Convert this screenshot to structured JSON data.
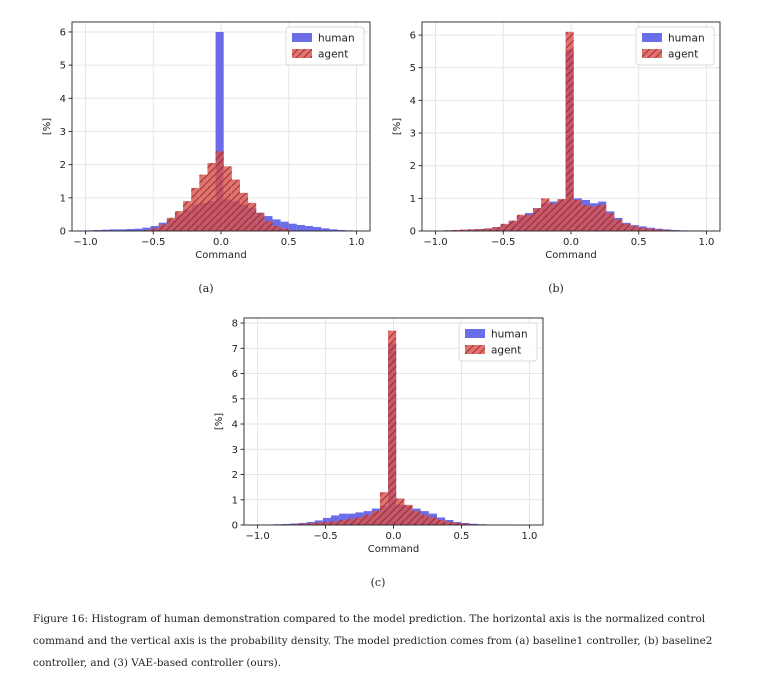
{
  "figure": {
    "caption": "Figure 16: Histogram of human demonstration compared to the model prediction. The horizontal axis is the normalized control command and the vertical axis is the probability density. The model prediction comes from (a) baseline1 controller, (b) baseline2 controller, and (3) VAE-based controller (ours).",
    "colors": {
      "human": "#5b5ce6",
      "agent": "#d9534f",
      "agent_hatch": "#8a1f1f",
      "grid": "#e6e6e6"
    }
  },
  "chart_data": [
    {
      "type": "bar",
      "panel_label": "(a)",
      "xlabel": "Command",
      "ylabel": "[%]",
      "xlim": [
        -1.1,
        1.1
      ],
      "ylim": [
        0,
        6.3
      ],
      "xticks": [
        "−1.0",
        "−0.5",
        "0.0",
        "0.5",
        "1.0"
      ],
      "xtick_values": [
        -1.0,
        -0.5,
        0.0,
        0.5,
        1.0
      ],
      "yticks": [
        "0",
        "1",
        "2",
        "3",
        "4",
        "5",
        "6"
      ],
      "ytick_values": [
        0,
        1,
        2,
        3,
        4,
        5,
        6
      ],
      "grid": true,
      "legend": "top-right",
      "bin_edges": [
        -1.0,
        -0.94,
        -0.88,
        -0.82,
        -0.76,
        -0.7,
        -0.64,
        -0.58,
        -0.52,
        -0.46,
        -0.4,
        -0.34,
        -0.28,
        -0.22,
        -0.16,
        -0.1,
        -0.04,
        0.02,
        0.08,
        0.14,
        0.2,
        0.26,
        0.32,
        0.38,
        0.44,
        0.5,
        0.56,
        0.62,
        0.68,
        0.74,
        0.8,
        0.86,
        0.92,
        0.98
      ],
      "series": [
        {
          "name": "human",
          "values": [
            0.02,
            0.03,
            0.04,
            0.05,
            0.05,
            0.06,
            0.07,
            0.1,
            0.15,
            0.25,
            0.35,
            0.5,
            0.65,
            0.8,
            0.85,
            0.9,
            6.0,
            0.95,
            0.9,
            0.8,
            0.7,
            0.55,
            0.45,
            0.35,
            0.28,
            0.22,
            0.18,
            0.15,
            0.12,
            0.08,
            0.05,
            0.03,
            0.02
          ]
        },
        {
          "name": "agent",
          "values": [
            0.0,
            0.0,
            0.0,
            0.0,
            0.0,
            0.0,
            0.01,
            0.03,
            0.08,
            0.2,
            0.4,
            0.6,
            0.9,
            1.3,
            1.7,
            2.05,
            2.4,
            1.95,
            1.55,
            1.15,
            0.85,
            0.55,
            0.3,
            0.15,
            0.07,
            0.02,
            0.01,
            0.0,
            0.0,
            0.0,
            0.0,
            0.0,
            0.0
          ]
        }
      ]
    },
    {
      "type": "bar",
      "panel_label": "(b)",
      "xlabel": "Command",
      "ylabel": "[%]",
      "xlim": [
        -1.1,
        1.1
      ],
      "ylim": [
        0,
        6.4
      ],
      "xticks": [
        "−1.0",
        "−0.5",
        "0.0",
        "0.5",
        "1.0"
      ],
      "xtick_values": [
        -1.0,
        -0.5,
        0.0,
        0.5,
        1.0
      ],
      "yticks": [
        "0",
        "1",
        "2",
        "3",
        "4",
        "5",
        "6"
      ],
      "ytick_values": [
        0,
        1,
        2,
        3,
        4,
        5,
        6
      ],
      "grid": true,
      "legend": "top-right",
      "bin_edges": [
        -1.0,
        -0.94,
        -0.88,
        -0.82,
        -0.76,
        -0.7,
        -0.64,
        -0.58,
        -0.52,
        -0.46,
        -0.4,
        -0.34,
        -0.28,
        -0.22,
        -0.16,
        -0.1,
        -0.04,
        0.02,
        0.08,
        0.14,
        0.2,
        0.26,
        0.32,
        0.38,
        0.44,
        0.5,
        0.56,
        0.62,
        0.68,
        0.74,
        0.8,
        0.86,
        0.92,
        0.98
      ],
      "series": [
        {
          "name": "human",
          "values": [
            0.01,
            0.02,
            0.03,
            0.04,
            0.05,
            0.06,
            0.08,
            0.12,
            0.2,
            0.3,
            0.45,
            0.55,
            0.7,
            0.85,
            0.9,
            0.95,
            5.55,
            1.0,
            0.95,
            0.85,
            0.9,
            0.6,
            0.4,
            0.25,
            0.18,
            0.14,
            0.1,
            0.07,
            0.05,
            0.03,
            0.02,
            0.01,
            0.01
          ]
        },
        {
          "name": "agent",
          "values": [
            0.01,
            0.02,
            0.03,
            0.04,
            0.05,
            0.06,
            0.08,
            0.12,
            0.22,
            0.32,
            0.5,
            0.5,
            0.7,
            1.0,
            0.85,
            0.98,
            6.1,
            0.95,
            0.8,
            0.75,
            0.8,
            0.55,
            0.35,
            0.22,
            0.15,
            0.1,
            0.07,
            0.05,
            0.03,
            0.02,
            0.01,
            0.0,
            0.0
          ]
        }
      ]
    },
    {
      "type": "bar",
      "panel_label": "(c)",
      "xlabel": "Command",
      "ylabel": "[%]",
      "xlim": [
        -1.1,
        1.1
      ],
      "ylim": [
        0,
        8.2
      ],
      "xticks": [
        "−1.0",
        "−0.5",
        "0.0",
        "0.5",
        "1.0"
      ],
      "xtick_values": [
        -1.0,
        -0.5,
        0.0,
        0.5,
        1.0
      ],
      "yticks": [
        "0",
        "1",
        "2",
        "3",
        "4",
        "5",
        "6",
        "7",
        "8"
      ],
      "ytick_values": [
        0,
        1,
        2,
        3,
        4,
        5,
        6,
        7,
        8
      ],
      "grid": true,
      "legend": "top-right",
      "bin_edges": [
        -1.0,
        -0.94,
        -0.88,
        -0.82,
        -0.76,
        -0.7,
        -0.64,
        -0.58,
        -0.52,
        -0.46,
        -0.4,
        -0.34,
        -0.28,
        -0.22,
        -0.16,
        -0.1,
        -0.04,
        0.02,
        0.08,
        0.14,
        0.2,
        0.26,
        0.32,
        0.38,
        0.44,
        0.5,
        0.56,
        0.62,
        0.68,
        0.74,
        0.8,
        0.86,
        0.92,
        0.98
      ],
      "series": [
        {
          "name": "human",
          "values": [
            0.01,
            0.02,
            0.03,
            0.04,
            0.06,
            0.08,
            0.12,
            0.18,
            0.28,
            0.38,
            0.45,
            0.45,
            0.5,
            0.55,
            0.65,
            0.75,
            7.2,
            0.8,
            0.75,
            0.65,
            0.55,
            0.45,
            0.3,
            0.2,
            0.12,
            0.08,
            0.05,
            0.03,
            0.02,
            0.01,
            0.01,
            0.0,
            0.0
          ]
        },
        {
          "name": "agent",
          "values": [
            0.0,
            0.0,
            0.01,
            0.02,
            0.03,
            0.05,
            0.07,
            0.1,
            0.12,
            0.15,
            0.2,
            0.25,
            0.3,
            0.4,
            0.55,
            1.3,
            7.7,
            1.05,
            0.8,
            0.55,
            0.4,
            0.3,
            0.2,
            0.12,
            0.08,
            0.05,
            0.03,
            0.02,
            0.01,
            0.0,
            0.0,
            0.0,
            0.0
          ]
        }
      ]
    }
  ]
}
